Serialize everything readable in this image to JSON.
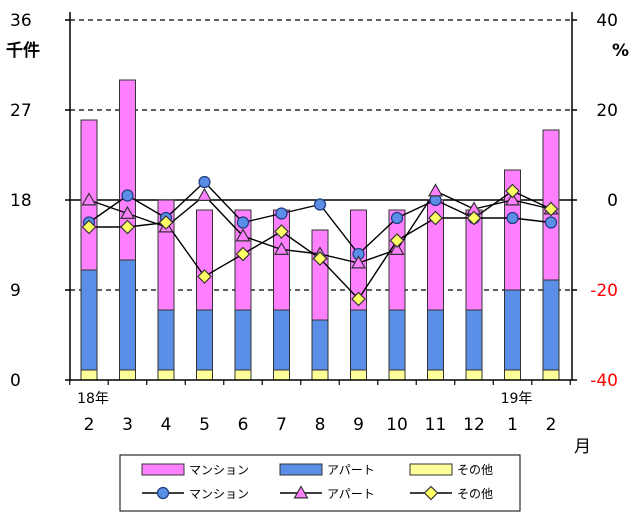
{
  "chart_data": {
    "type": "bar+line",
    "categories": [
      "2",
      "3",
      "4",
      "5",
      "6",
      "7",
      "8",
      "9",
      "10",
      "11",
      "12",
      "1",
      "2"
    ],
    "year_marks": [
      {
        "index": 0,
        "label": "18年"
      },
      {
        "index": 11,
        "label": "19年"
      }
    ],
    "x_unit": "月",
    "left_axis": {
      "unit": "千件",
      "ticks": [
        "0",
        "9",
        "18",
        "27",
        "36"
      ],
      "range": [
        0,
        36
      ]
    },
    "right_axis": {
      "unit": "%",
      "ticks": [
        "-40",
        "-20",
        "0",
        "20",
        "40"
      ],
      "range": [
        -40,
        40
      ],
      "negative_color": "#ff0000"
    },
    "bar_series": [
      {
        "name": "その他",
        "color": "#ffff99",
        "values": [
          1,
          1,
          1,
          1,
          1,
          1,
          1,
          1,
          1,
          1,
          1,
          1,
          1
        ]
      },
      {
        "name": "アパート",
        "color": "#5b8ee6",
        "values": [
          10,
          11,
          6,
          6,
          6,
          6,
          5,
          6,
          6,
          6,
          6,
          8,
          9
        ]
      },
      {
        "name": "マンション",
        "color": "#ff80ff",
        "values": [
          15,
          18,
          11,
          10,
          10,
          10,
          9,
          10,
          10,
          11,
          10,
          12,
          15
        ]
      }
    ],
    "line_series": [
      {
        "name": "マンション",
        "marker": "circle",
        "color": "#5b8ee6",
        "values": [
          -5,
          1,
          -4,
          4,
          -5,
          -3,
          -1,
          -12,
          -4,
          0,
          -4,
          -4,
          -5
        ]
      },
      {
        "name": "アパート",
        "marker": "triangle",
        "color": "#ff80ff",
        "values": [
          0,
          -3,
          -6,
          1,
          -8,
          -11,
          -12,
          -14,
          -11,
          2,
          -2,
          0,
          -2
        ]
      },
      {
        "name": "その他",
        "marker": "diamond",
        "color": "#ffff66",
        "values": [
          -6,
          -6,
          -5,
          -17,
          -12,
          -7,
          -13,
          -22,
          -9,
          -4,
          -4,
          2,
          -2
        ]
      }
    ],
    "grid": "dashed at 9, 27, 36; solid at 18",
    "legend": [
      {
        "label": "マンション",
        "kind": "bar",
        "color": "#ff80ff"
      },
      {
        "label": "アパート",
        "kind": "bar",
        "color": "#5b8ee6"
      },
      {
        "label": "その他",
        "kind": "bar",
        "color": "#ffff99"
      },
      {
        "label": "マンション",
        "kind": "line-circle",
        "color": "#5b8ee6"
      },
      {
        "label": "アパート",
        "kind": "line-triangle",
        "color": "#ff80ff"
      },
      {
        "label": "その他",
        "kind": "line-diamond",
        "color": "#ffff66"
      }
    ]
  }
}
